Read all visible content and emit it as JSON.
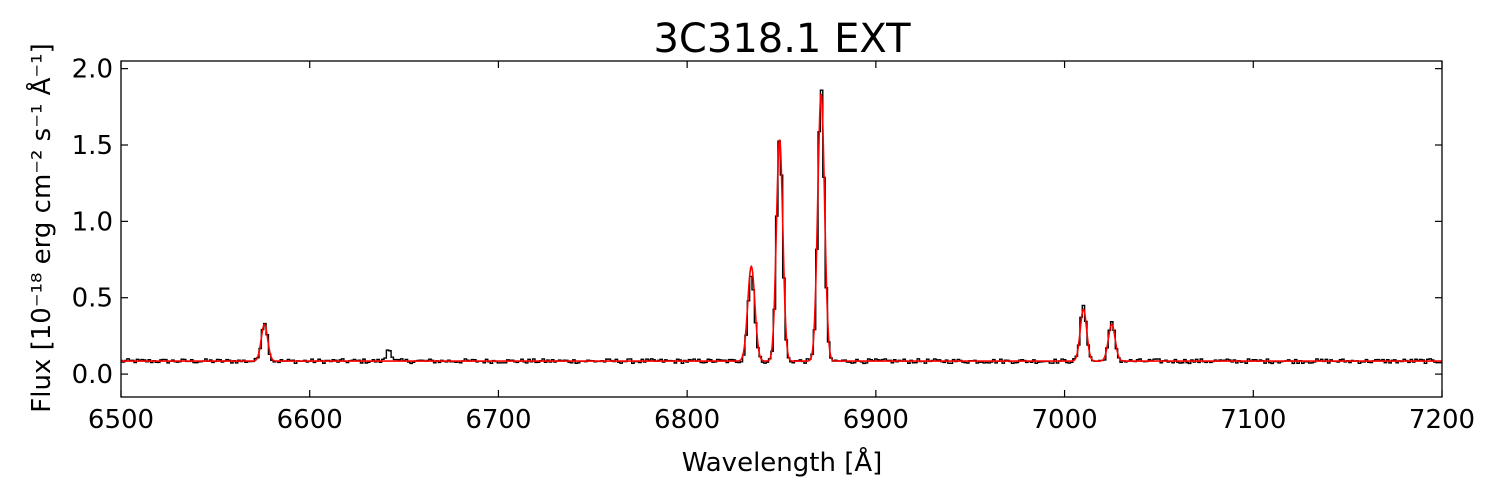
{
  "chart_data": {
    "type": "line",
    "title": "3C318.1 EXT",
    "xlabel": "Wavelength [Å]",
    "ylabel": "Flux [10⁻¹⁸ erg cm⁻² s⁻¹ Å⁻¹]",
    "xlim": [
      6500,
      7200
    ],
    "ylim": [
      -0.15,
      2.05
    ],
    "xticks": [
      "6500",
      "6600",
      "6700",
      "6800",
      "6900",
      "7000",
      "7100",
      "7200"
    ],
    "yticks": [
      "0.0",
      "0.5",
      "1.0",
      "1.5",
      "2.0"
    ],
    "grid": false,
    "continuum": 0.085,
    "series": [
      {
        "color": "#000000",
        "style": "steps",
        "peaks": [
          {
            "center": 6576,
            "amplitude": 0.26,
            "sigma": 1.6
          },
          {
            "center": 6642,
            "amplitude": 0.09,
            "sigma": 1.2
          },
          {
            "center": 6834,
            "amplitude": 0.56,
            "sigma": 1.8
          },
          {
            "center": 6849,
            "amplitude": 1.47,
            "sigma": 1.6
          },
          {
            "center": 6871,
            "amplitude": 1.78,
            "sigma": 1.7
          },
          {
            "center": 7010,
            "amplitude": 0.37,
            "sigma": 1.6
          },
          {
            "center": 7025,
            "amplitude": 0.25,
            "sigma": 1.7
          }
        ]
      },
      {
        "color": "#ff0000",
        "style": "line",
        "peaks": [
          {
            "center": 6576,
            "amplitude": 0.24,
            "sigma": 1.7
          },
          {
            "center": 6834,
            "amplitude": 0.62,
            "sigma": 1.9
          },
          {
            "center": 6849,
            "amplitude": 1.45,
            "sigma": 1.7
          },
          {
            "center": 6871,
            "amplitude": 1.75,
            "sigma": 1.8
          },
          {
            "center": 7010,
            "amplitude": 0.34,
            "sigma": 1.7
          },
          {
            "center": 7025,
            "amplitude": 0.24,
            "sigma": 1.8
          }
        ]
      }
    ]
  }
}
